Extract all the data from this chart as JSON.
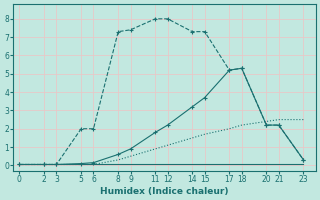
{
  "xlabel": "Humidex (Indice chaleur)",
  "bg_color": "#c2e8e0",
  "grid_color": "#e8c8c8",
  "line_color": "#1a7070",
  "line1": {
    "x": [
      0,
      2,
      3,
      5,
      6,
      8,
      9,
      11,
      12,
      14,
      15,
      17,
      18,
      20,
      21,
      23
    ],
    "y": [
      0.05,
      0.05,
      0.05,
      0.05,
      0.05,
      0.05,
      0.05,
      0.05,
      0.05,
      0.05,
      0.05,
      0.05,
      0.05,
      0.05,
      0.05,
      0.05
    ],
    "style": "solid",
    "marker": null
  },
  "line2": {
    "x": [
      0,
      2,
      3,
      5,
      6,
      8,
      9,
      11,
      12,
      14,
      15,
      17,
      18,
      20,
      21,
      23
    ],
    "y": [
      0.05,
      0.05,
      0.05,
      0.05,
      0.05,
      0.3,
      0.5,
      0.9,
      1.1,
      1.5,
      1.7,
      2.0,
      2.2,
      2.4,
      2.5,
      2.5
    ],
    "style": "dotted",
    "marker": null
  },
  "line3": {
    "x": [
      0,
      2,
      3,
      5,
      6,
      8,
      9,
      11,
      12,
      14,
      15,
      17,
      18,
      20,
      21,
      23
    ],
    "y": [
      0.05,
      0.05,
      0.05,
      0.1,
      0.15,
      0.6,
      0.9,
      1.8,
      2.2,
      3.2,
      3.7,
      5.2,
      5.3,
      2.2,
      2.2,
      0.3
    ],
    "style": "solid",
    "marker": "+"
  },
  "line4": {
    "x": [
      0,
      2,
      3,
      5,
      6,
      8,
      9,
      11,
      12,
      14,
      15,
      17,
      18,
      20,
      21,
      23
    ],
    "y": [
      0.05,
      0.05,
      0.05,
      2.0,
      2.0,
      7.3,
      7.4,
      8.0,
      8.0,
      7.3,
      7.3,
      5.2,
      5.3,
      2.2,
      2.2,
      0.3
    ],
    "style": "dashed",
    "marker": "+"
  },
  "xticks": [
    0,
    2,
    3,
    5,
    6,
    8,
    9,
    11,
    12,
    14,
    15,
    17,
    18,
    20,
    21,
    23
  ],
  "yticks": [
    0,
    1,
    2,
    3,
    4,
    5,
    6,
    7,
    8
  ],
  "xlim": [
    -0.5,
    24
  ],
  "ylim": [
    -0.3,
    8.8
  ]
}
